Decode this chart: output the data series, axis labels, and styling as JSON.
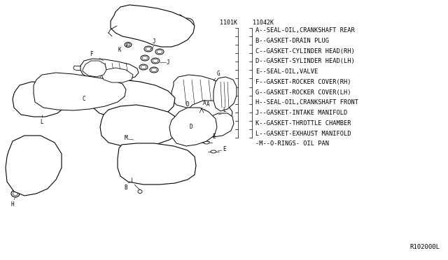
{
  "background_color": "#ffffff",
  "part_numbers_left": "1101K",
  "part_numbers_right": "11042K",
  "legend_items": [
    "A--SEAL-OIL,CRANKSHAFT REAR",
    "B--GASKET-DRAIN PLUG",
    "C--GASKET-CYLINDER HEAD(RH)",
    "D--GASKET-SYLINDER HEAD(LH)",
    "E--SEAL-OIL,VALVE",
    "F--GASKET-ROCKER COVER(RH)",
    "G--GASKET-ROCKER COVER(LH)",
    "H--SEAL-OIL,CRANKSHAFT FRONT",
    "J--GASKET-INTAKE MANIFOLD",
    "K--GASKET-THROTTLE CHAMBER",
    "L--GASKET-EXHAUST MANIFOLD",
    "-M--O-RINGS- OIL PAN"
  ],
  "diagram_code": "R102000L",
  "line_color": "#000000",
  "text_color": "#000000",
  "font_size_legend": 6.2,
  "font_size_codes": 6.0,
  "font_size_label": 5.5,
  "font_size_diagram_code": 6.5
}
